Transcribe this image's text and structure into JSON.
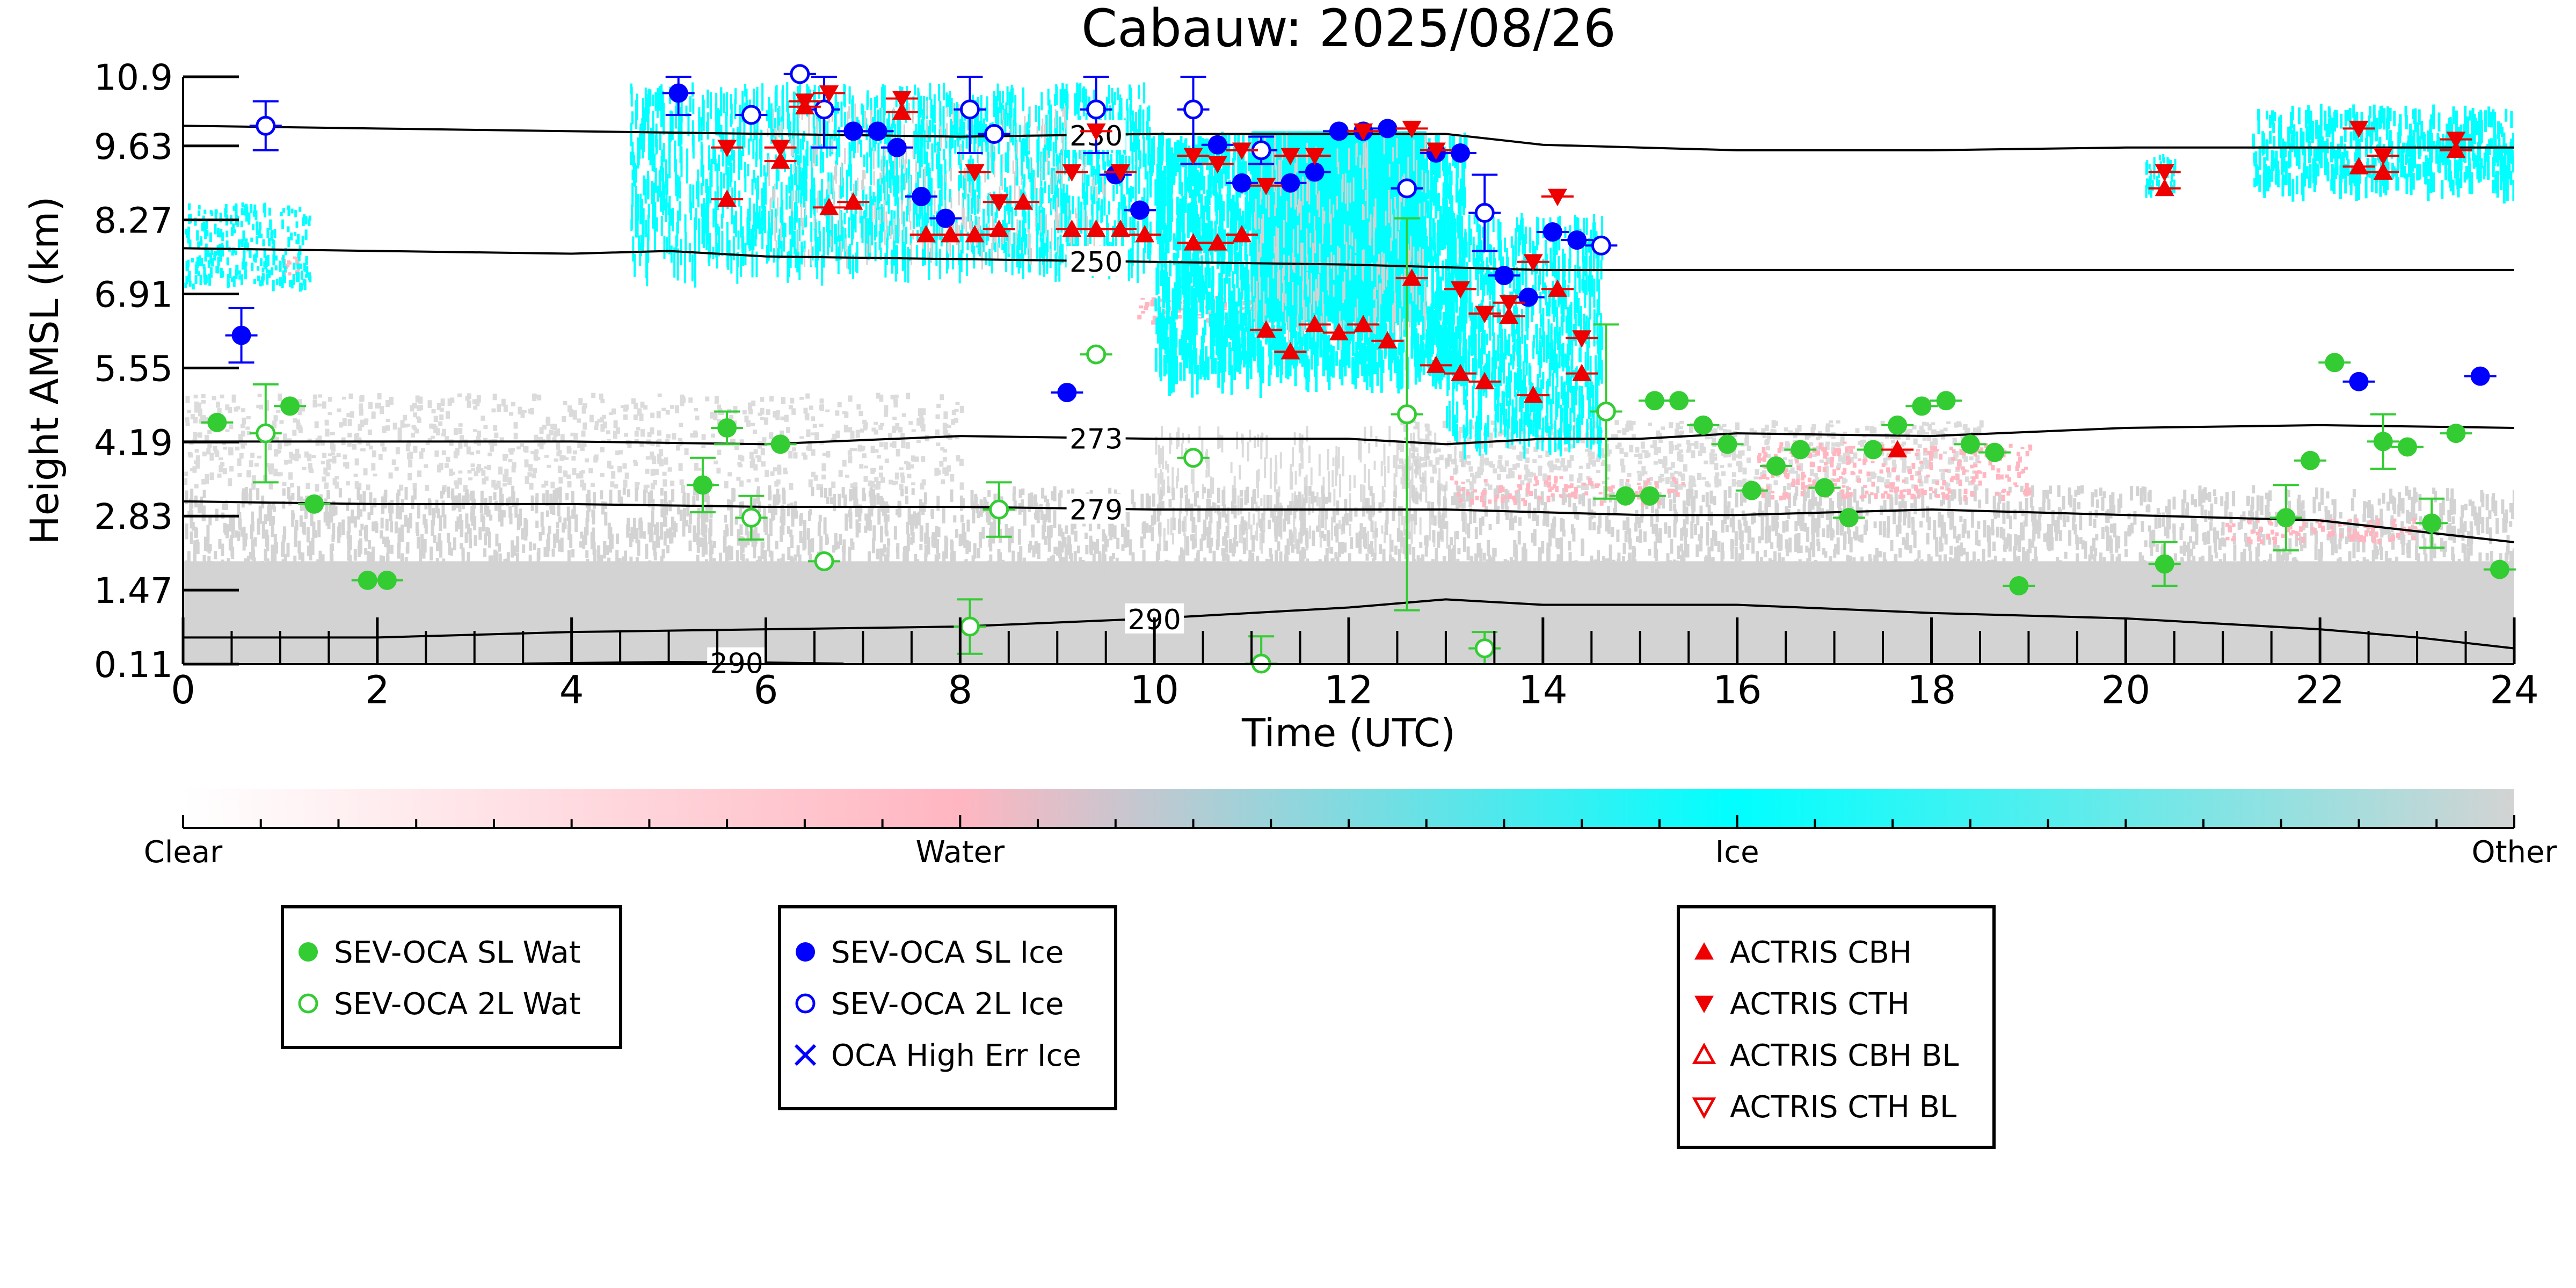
{
  "chart_data": {
    "type": "scatter",
    "title": "Cabauw: 2025/08/26",
    "xlabel": "Time (UTC)",
    "ylabel": "Height AMSL (km)",
    "xlim": [
      0,
      24
    ],
    "ylim": [
      0.11,
      10.9
    ],
    "x_ticks": [
      "0",
      "2",
      "4",
      "6",
      "8",
      "10",
      "12",
      "14",
      "16",
      "18",
      "20",
      "22",
      "24"
    ],
    "y_ticks": [
      "0.11",
      "1.47",
      "2.83",
      "4.19",
      "5.55",
      "6.91",
      "8.27",
      "9.63",
      "10.9"
    ],
    "background_classes": {
      "clear": "#ffffff",
      "water": "#ffb6c1",
      "ice": "#00ffff",
      "other": "#d3d3d3"
    },
    "colorbar": {
      "labels": [
        "Clear",
        "Water",
        "Ice",
        "Other"
      ],
      "stops": [
        "#ffffff",
        "#ffb6c1",
        "#00ffff",
        "#d3d3d3"
      ]
    },
    "isotherms": [
      {
        "label": "230",
        "label_x": 9.4,
        "x": [
          0,
          2,
          4,
          6,
          8,
          10,
          12,
          13,
          14,
          16,
          18,
          20,
          22,
          24
        ],
        "y": [
          10.0,
          9.95,
          9.9,
          9.85,
          9.8,
          9.85,
          9.85,
          9.85,
          9.65,
          9.55,
          9.55,
          9.6,
          9.6,
          9.6
        ]
      },
      {
        "label": "250",
        "label_x": 9.4,
        "x": [
          0,
          2,
          4,
          5,
          6,
          8,
          10,
          12,
          13,
          14,
          16,
          18,
          20,
          22,
          24
        ],
        "y": [
          7.75,
          7.7,
          7.65,
          7.7,
          7.6,
          7.55,
          7.5,
          7.45,
          7.4,
          7.35,
          7.35,
          7.35,
          7.35,
          7.35,
          7.35
        ]
      },
      {
        "label": "273",
        "label_x": 9.4,
        "x": [
          0,
          2,
          4,
          6,
          8,
          10,
          12,
          13,
          14,
          15,
          16,
          18,
          20,
          22,
          24
        ],
        "y": [
          4.2,
          4.2,
          4.2,
          4.15,
          4.3,
          4.25,
          4.25,
          4.15,
          4.25,
          4.25,
          4.35,
          4.3,
          4.45,
          4.5,
          4.45
        ]
      },
      {
        "label": "279",
        "label_x": 9.4,
        "x": [
          0,
          2,
          4,
          6,
          8,
          10,
          12,
          13,
          14,
          15,
          16,
          18,
          20,
          22,
          23,
          24
        ],
        "y": [
          3.1,
          3.05,
          3.05,
          3.0,
          3.0,
          2.95,
          2.95,
          2.95,
          2.9,
          2.85,
          2.85,
          2.95,
          2.85,
          2.75,
          2.55,
          2.35
        ]
      },
      {
        "label": "290",
        "label_x": 10.0,
        "x": [
          0,
          2,
          4,
          6,
          8,
          10,
          12,
          13,
          14,
          16,
          18,
          20,
          21,
          22,
          23,
          24
        ],
        "y": [
          0.6,
          0.6,
          0.7,
          0.75,
          0.8,
          0.95,
          1.15,
          1.3,
          1.2,
          1.2,
          1.05,
          0.95,
          0.85,
          0.75,
          0.6,
          0.4
        ]
      },
      {
        "label": "290",
        "label_x": 5.7,
        "x": [
          3.5,
          5,
          6,
          6.8
        ],
        "y": [
          0.12,
          0.15,
          0.14,
          0.12
        ]
      }
    ],
    "series": [
      {
        "name": "SEV-OCA SL Wat",
        "color": "#33cc33",
        "marker": "circle-filled",
        "points": [
          {
            "x": 0.35,
            "y": 4.55
          },
          {
            "x": 1.1,
            "y": 4.85
          },
          {
            "x": 1.35,
            "y": 3.05
          },
          {
            "x": 1.9,
            "y": 1.65
          },
          {
            "x": 2.1,
            "y": 1.65
          },
          {
            "x": 5.35,
            "y": 3.4,
            "err": 0.5
          },
          {
            "x": 5.6,
            "y": 4.45,
            "err": 0.3
          },
          {
            "x": 6.15,
            "y": 4.15
          },
          {
            "x": 15.15,
            "y": 4.95
          },
          {
            "x": 14.85,
            "y": 3.2
          },
          {
            "x": 15.1,
            "y": 3.2
          },
          {
            "x": 15.4,
            "y": 4.95
          },
          {
            "x": 15.65,
            "y": 4.5
          },
          {
            "x": 15.9,
            "y": 4.15
          },
          {
            "x": 16.15,
            "y": 3.3
          },
          {
            "x": 16.4,
            "y": 3.75
          },
          {
            "x": 16.65,
            "y": 4.05
          },
          {
            "x": 16.9,
            "y": 3.35
          },
          {
            "x": 17.15,
            "y": 2.8
          },
          {
            "x": 17.4,
            "y": 4.05
          },
          {
            "x": 17.65,
            "y": 4.5
          },
          {
            "x": 17.9,
            "y": 4.85
          },
          {
            "x": 18.15,
            "y": 4.95
          },
          {
            "x": 18.4,
            "y": 4.15
          },
          {
            "x": 18.65,
            "y": 4.0
          },
          {
            "x": 18.9,
            "y": 1.55
          },
          {
            "x": 20.4,
            "y": 1.95,
            "err": 0.4
          },
          {
            "x": 21.65,
            "y": 2.8,
            "err": 0.6
          },
          {
            "x": 21.9,
            "y": 3.85
          },
          {
            "x": 22.15,
            "y": 5.65
          },
          {
            "x": 22.65,
            "y": 4.2,
            "err": 0.5
          },
          {
            "x": 22.9,
            "y": 4.1
          },
          {
            "x": 23.15,
            "y": 2.7,
            "err": 0.45
          },
          {
            "x": 23.4,
            "y": 4.35
          },
          {
            "x": 23.85,
            "y": 1.85
          }
        ]
      },
      {
        "name": "SEV-OCA 2L Wat",
        "color": "#33cc33",
        "marker": "circle-open",
        "points": [
          {
            "x": 0.85,
            "y": 4.35,
            "err": 0.9
          },
          {
            "x": 5.85,
            "y": 2.8,
            "err": 0.4
          },
          {
            "x": 6.6,
            "y": 2.0
          },
          {
            "x": 8.1,
            "y": 0.8,
            "err": 0.5
          },
          {
            "x": 8.4,
            "y": 2.95,
            "err": 0.5
          },
          {
            "x": 9.4,
            "y": 5.8
          },
          {
            "x": 10.4,
            "y": 3.9
          },
          {
            "x": 11.1,
            "y": 0.12,
            "err": 0.5
          },
          {
            "x": 12.6,
            "y": 4.7,
            "err": 3.6
          },
          {
            "x": 13.4,
            "y": 0.4,
            "err": 0.3
          },
          {
            "x": 14.65,
            "y": 4.75,
            "err": 1.6
          }
        ]
      },
      {
        "name": "SEV-OCA SL Ice",
        "color": "#0000ff",
        "marker": "circle-filled",
        "points": [
          {
            "x": 0.6,
            "y": 6.15,
            "err": 0.5
          },
          {
            "x": 5.1,
            "y": 10.6,
            "err": 0.4
          },
          {
            "x": 6.35,
            "y": 10.95
          },
          {
            "x": 6.9,
            "y": 9.9
          },
          {
            "x": 7.15,
            "y": 9.9
          },
          {
            "x": 7.35,
            "y": 9.6
          },
          {
            "x": 7.6,
            "y": 8.7
          },
          {
            "x": 7.85,
            "y": 8.3
          },
          {
            "x": 9.1,
            "y": 5.1
          },
          {
            "x": 9.6,
            "y": 9.1
          },
          {
            "x": 9.85,
            "y": 8.45
          },
          {
            "x": 10.65,
            "y": 9.65
          },
          {
            "x": 10.9,
            "y": 8.95
          },
          {
            "x": 11.4,
            "y": 8.95
          },
          {
            "x": 11.65,
            "y": 9.15
          },
          {
            "x": 11.9,
            "y": 9.9
          },
          {
            "x": 12.15,
            "y": 9.9
          },
          {
            "x": 12.4,
            "y": 9.95
          },
          {
            "x": 12.9,
            "y": 9.5
          },
          {
            "x": 13.15,
            "y": 9.5
          },
          {
            "x": 13.6,
            "y": 7.25
          },
          {
            "x": 13.85,
            "y": 6.85
          },
          {
            "x": 14.1,
            "y": 8.05
          },
          {
            "x": 14.35,
            "y": 7.9
          },
          {
            "x": 22.4,
            "y": 5.3
          },
          {
            "x": 23.65,
            "y": 5.4
          }
        ]
      },
      {
        "name": "SEV-OCA 2L Ice",
        "color": "#0000ff",
        "marker": "circle-open",
        "points": [
          {
            "x": 0.85,
            "y": 10.0,
            "err": 0.45
          },
          {
            "x": 5.85,
            "y": 10.2
          },
          {
            "x": 6.35,
            "y": 10.95
          },
          {
            "x": 6.6,
            "y": 10.3,
            "err": 0.7
          },
          {
            "x": 8.1,
            "y": 10.3,
            "err": 0.8
          },
          {
            "x": 8.35,
            "y": 9.85
          },
          {
            "x": 9.4,
            "y": 10.3,
            "err": 0.8
          },
          {
            "x": 10.4,
            "y": 10.3,
            "err": 1.0
          },
          {
            "x": 11.1,
            "y": 9.55,
            "err": 0.25
          },
          {
            "x": 12.6,
            "y": 8.85
          },
          {
            "x": 13.4,
            "y": 8.4,
            "err": 0.7
          },
          {
            "x": 14.6,
            "y": 7.8
          }
        ]
      },
      {
        "name": "OCA High Err Ice",
        "color": "#0000ff",
        "marker": "x",
        "points": []
      },
      {
        "name": "ACTRIS CBH",
        "color": "#ee0000",
        "marker": "triangle-up-filled",
        "points": [
          {
            "x": 5.6,
            "y": 8.65
          },
          {
            "x": 6.15,
            "y": 9.35
          },
          {
            "x": 6.4,
            "y": 10.35
          },
          {
            "x": 6.65,
            "y": 8.5
          },
          {
            "x": 6.9,
            "y": 8.6
          },
          {
            "x": 7.4,
            "y": 10.25
          },
          {
            "x": 7.65,
            "y": 8.0
          },
          {
            "x": 7.9,
            "y": 8.0
          },
          {
            "x": 8.15,
            "y": 8.0
          },
          {
            "x": 8.4,
            "y": 8.1
          },
          {
            "x": 8.65,
            "y": 8.6
          },
          {
            "x": 9.15,
            "y": 8.1
          },
          {
            "x": 9.4,
            "y": 8.1
          },
          {
            "x": 9.65,
            "y": 8.1
          },
          {
            "x": 9.9,
            "y": 8.0
          },
          {
            "x": 10.4,
            "y": 7.85
          },
          {
            "x": 10.65,
            "y": 7.85
          },
          {
            "x": 10.9,
            "y": 8.0
          },
          {
            "x": 11.15,
            "y": 6.25
          },
          {
            "x": 11.4,
            "y": 5.85
          },
          {
            "x": 11.65,
            "y": 6.35
          },
          {
            "x": 11.9,
            "y": 6.2
          },
          {
            "x": 12.15,
            "y": 6.35
          },
          {
            "x": 12.4,
            "y": 6.05
          },
          {
            "x": 12.65,
            "y": 7.2
          },
          {
            "x": 12.9,
            "y": 5.6
          },
          {
            "x": 13.15,
            "y": 5.45
          },
          {
            "x": 13.4,
            "y": 5.3
          },
          {
            "x": 13.65,
            "y": 6.5
          },
          {
            "x": 13.9,
            "y": 5.05
          },
          {
            "x": 14.15,
            "y": 7.0
          },
          {
            "x": 14.4,
            "y": 5.45
          },
          {
            "x": 17.65,
            "y": 4.05
          },
          {
            "x": 20.4,
            "y": 8.85
          },
          {
            "x": 22.4,
            "y": 9.25
          },
          {
            "x": 22.65,
            "y": 9.15
          },
          {
            "x": 23.4,
            "y": 9.55
          }
        ]
      },
      {
        "name": "ACTRIS CTH",
        "color": "#ee0000",
        "marker": "triangle-down-filled",
        "points": [
          {
            "x": 5.6,
            "y": 9.6
          },
          {
            "x": 6.15,
            "y": 9.6
          },
          {
            "x": 6.4,
            "y": 10.45
          },
          {
            "x": 6.65,
            "y": 10.6
          },
          {
            "x": 7.4,
            "y": 10.5
          },
          {
            "x": 8.15,
            "y": 9.15
          },
          {
            "x": 8.4,
            "y": 8.6
          },
          {
            "x": 9.15,
            "y": 9.15
          },
          {
            "x": 9.4,
            "y": 9.9
          },
          {
            "x": 9.65,
            "y": 9.15
          },
          {
            "x": 10.4,
            "y": 9.45
          },
          {
            "x": 10.65,
            "y": 9.3
          },
          {
            "x": 10.9,
            "y": 9.55
          },
          {
            "x": 11.15,
            "y": 8.9
          },
          {
            "x": 11.4,
            "y": 9.45
          },
          {
            "x": 11.65,
            "y": 9.45
          },
          {
            "x": 12.15,
            "y": 9.9
          },
          {
            "x": 12.65,
            "y": 9.95
          },
          {
            "x": 12.9,
            "y": 9.55
          },
          {
            "x": 13.15,
            "y": 7.0
          },
          {
            "x": 13.4,
            "y": 6.55
          },
          {
            "x": 13.65,
            "y": 6.75
          },
          {
            "x": 13.9,
            "y": 7.5
          },
          {
            "x": 14.15,
            "y": 8.7
          },
          {
            "x": 14.4,
            "y": 6.1
          },
          {
            "x": 20.4,
            "y": 9.15
          },
          {
            "x": 22.4,
            "y": 9.95
          },
          {
            "x": 22.65,
            "y": 9.45
          },
          {
            "x": 23.4,
            "y": 9.75
          }
        ]
      },
      {
        "name": "ACTRIS CBH BL",
        "color": "#ee0000",
        "marker": "triangle-up-open",
        "points": []
      },
      {
        "name": "ACTRIS CTH BL",
        "color": "#ee0000",
        "marker": "triangle-down-open",
        "points": []
      }
    ],
    "legends": [
      {
        "items": [
          "SEV-OCA SL Wat",
          "SEV-OCA 2L Wat"
        ]
      },
      {
        "items": [
          "SEV-OCA SL Ice",
          "SEV-OCA 2L Ice",
          "OCA High Err Ice"
        ]
      },
      {
        "items": [
          "ACTRIS CBH",
          "ACTRIS CTH",
          "ACTRIS CBH BL",
          "ACTRIS CTH BL"
        ]
      }
    ]
  }
}
